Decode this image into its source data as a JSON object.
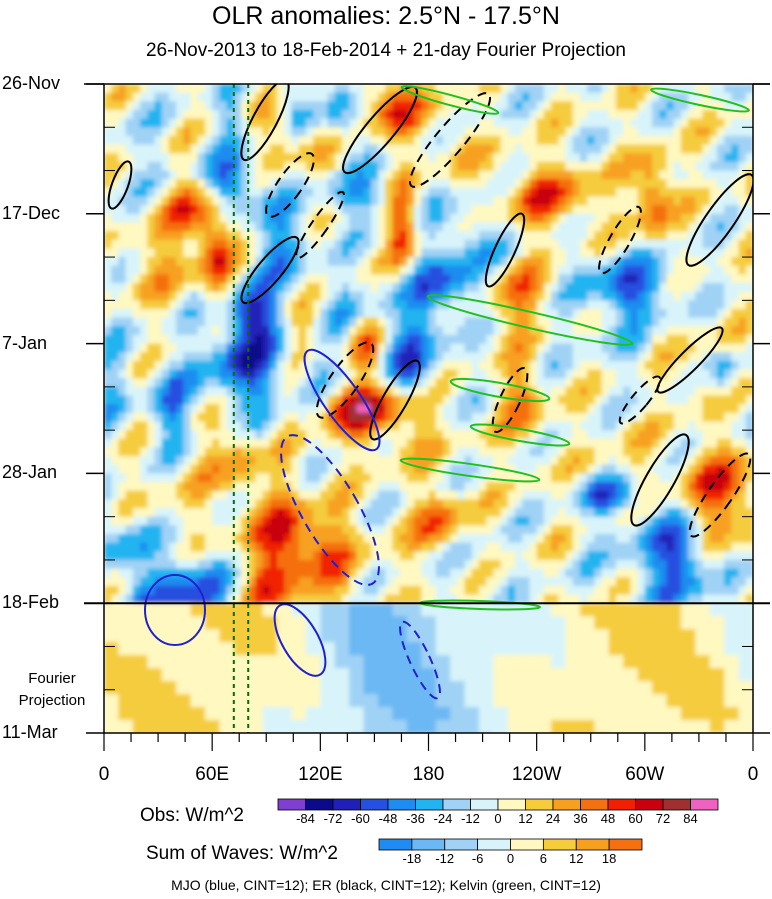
{
  "chart_data": {
    "type": "heatmap",
    "title": "OLR anomalies: 2.5°N - 17.5°N",
    "subtitle": "26-Nov-2013 to 18-Feb-2014 + 21-day Fourier Projection",
    "x_tick_labels": [
      "0",
      "60E",
      "120E",
      "180",
      "120W",
      "60W",
      "0"
    ],
    "x_ticks_deg_east": [
      0,
      60,
      120,
      180,
      240,
      300,
      360
    ],
    "y_tick_labels": [
      "26-Nov",
      "17-Dec",
      "7-Jan",
      "28-Jan",
      "18-Feb",
      "11-Mar"
    ],
    "y_ticks_day_index": [
      0,
      21,
      42,
      63,
      84,
      105
    ],
    "observation_end_label": "18-Feb",
    "projection_label": "Fourier Projection",
    "obs_colorbar": {
      "label": "Obs: W/m^2",
      "levels": [
        -84,
        -72,
        -60,
        -48,
        -36,
        -24,
        -12,
        0,
        12,
        24,
        36,
        48,
        60,
        72,
        84
      ],
      "colors": [
        "#7f3fd0",
        "#0a0a8a",
        "#2020b8",
        "#2850e0",
        "#1e8cf0",
        "#22b4f0",
        "#a0d2f5",
        "#d8f4fa",
        "#fff8c0",
        "#f5cc3c",
        "#f7a020",
        "#f57010",
        "#f02000",
        "#c80010",
        "#a03030",
        "#f062c0"
      ]
    },
    "waves_colorbar": {
      "label": "Sum of Waves: W/m^2",
      "levels": [
        -18,
        -12,
        -6,
        0,
        6,
        12,
        18
      ],
      "colors": [
        "#1e8cf0",
        "#6cb8f4",
        "#a0d2f5",
        "#d8f4fa",
        "#fff8c0",
        "#f5cc3c",
        "#f7a020",
        "#f57010"
      ]
    },
    "contours_legend": "MJO (blue, CINT=12); ER (black, CINT=12); Kelvin (green, CINT=12)",
    "contour_colors": {
      "MJO": "#2020d0",
      "ER": "#000000",
      "Kelvin": "#20c020"
    },
    "reference_lines_deg_east": [
      72,
      80
    ],
    "reference_line_color": "#007000",
    "grid": false
  }
}
